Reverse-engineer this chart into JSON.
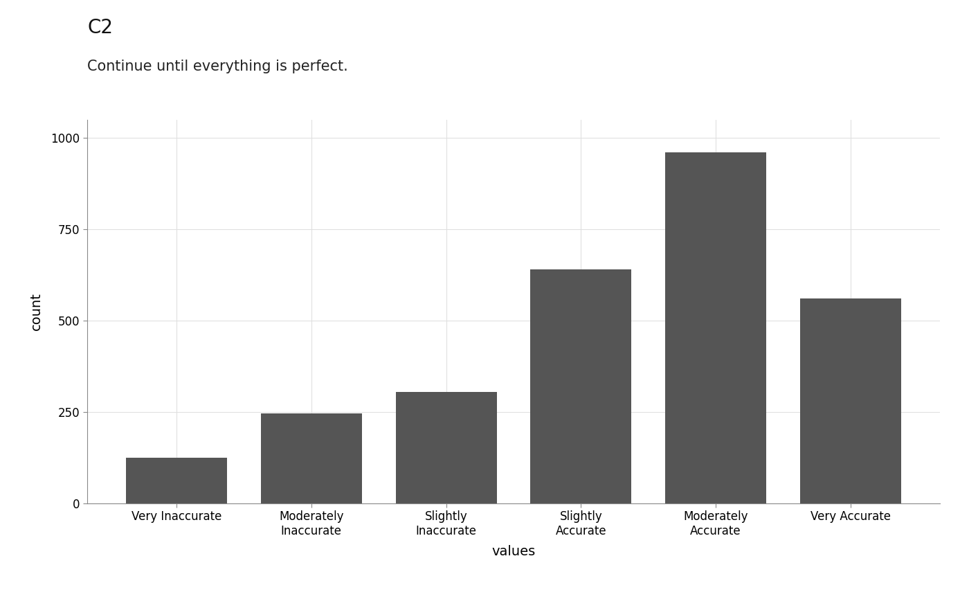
{
  "title": "C2",
  "subtitle": "Continue until everything is perfect.",
  "categories": [
    "Very Inaccurate",
    "Moderately\nInaccurate",
    "Slightly\nInaccurate",
    "Slightly\nAccurate",
    "Moderately\nAccurate",
    "Very Accurate"
  ],
  "values": [
    125,
    245,
    305,
    640,
    960,
    560
  ],
  "bar_color": "#555555",
  "xlabel": "values",
  "ylabel": "count",
  "ylim": [
    0,
    1050
  ],
  "yticks": [
    0,
    250,
    500,
    750,
    1000
  ],
  "background_color": "#ffffff",
  "plot_bg_color": "#ffffff",
  "grid_color": "#e0e0e0",
  "title_fontsize": 20,
  "subtitle_fontsize": 15,
  "axis_label_fontsize": 14,
  "tick_fontsize": 12
}
